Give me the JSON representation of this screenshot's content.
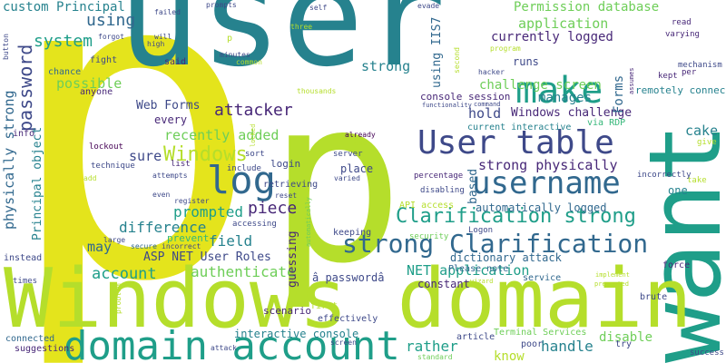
{
  "palette": {
    "yellow": "#e4e41c",
    "lime": "#b5de2b",
    "lightgreen": "#6ece58",
    "green": "#35b779",
    "teal": "#1f9e89",
    "darkteal": "#26828e",
    "blue": "#31688e",
    "indigo": "#3e4989",
    "purple": "#482878",
    "darkpurple": "#440154"
  },
  "words": [
    {
      "text": "p",
      "color": "yellow"
    },
    {
      "text": "user",
      "color": "darkteal"
    },
    {
      "text": "want",
      "color": "teal"
    },
    {
      "text": "p",
      "color": "lime"
    },
    {
      "text": "Windows domain",
      "color": "lime"
    },
    {
      "text": "domain account",
      "color": "teal"
    },
    {
      "text": "User table",
      "color": "indigo"
    },
    {
      "text": "username",
      "color": "blue"
    },
    {
      "text": "make",
      "color": "teal"
    },
    {
      "text": "log",
      "color": "blue"
    },
    {
      "text": "strong Clarification",
      "color": "blue"
    },
    {
      "text": "Clarification strong",
      "color": "teal"
    },
    {
      "text": "Windows",
      "color": "lime"
    },
    {
      "text": "system",
      "color": "teal"
    },
    {
      "text": "using",
      "color": "blue"
    },
    {
      "text": "custom Principal",
      "color": "darkteal"
    },
    {
      "text": "Permission database",
      "color": "lightgreen"
    },
    {
      "text": "application",
      "color": "lightgreen"
    },
    {
      "text": "currently logged",
      "color": "purple"
    },
    {
      "text": "strong",
      "color": "darkteal"
    },
    {
      "text": "challenge screen",
      "color": "lightgreen"
    },
    {
      "text": "manages",
      "color": "darkteal"
    },
    {
      "text": "Windows challenge",
      "color": "purple"
    },
    {
      "text": "hold",
      "color": "indigo"
    },
    {
      "text": "cake",
      "color": "darkteal"
    },
    {
      "text": "password",
      "color": "indigo"
    },
    {
      "text": "possible",
      "color": "lightgreen"
    },
    {
      "text": "attacker",
      "color": "purple"
    },
    {
      "text": "recently added",
      "color": "lightgreen"
    },
    {
      "text": "Web Forms",
      "color": "indigo"
    },
    {
      "text": "sure",
      "color": "indigo"
    },
    {
      "text": "difference",
      "color": "darkteal"
    },
    {
      "text": "prompted",
      "color": "teal"
    },
    {
      "text": "piece",
      "color": "purple"
    },
    {
      "text": "field",
      "color": "darkteal"
    },
    {
      "text": "ASP NET User Roles",
      "color": "indigo"
    },
    {
      "text": "account",
      "color": "teal"
    },
    {
      "text": "authenticate",
      "color": "lightgreen"
    },
    {
      "text": "may",
      "color": "blue"
    },
    {
      "text": "strong physically",
      "color": "purple"
    },
    {
      "text": "automatically logged",
      "color": "blue"
    },
    {
      "text": "NET application",
      "color": "teal"
    },
    {
      "text": "dictionary attack",
      "color": "blue"
    },
    {
      "text": "handle",
      "color": "darkteal"
    },
    {
      "text": "rather",
      "color": "teal"
    },
    {
      "text": "disable",
      "color": "lightgreen"
    },
    {
      "text": "know",
      "color": "lime"
    },
    {
      "text": "physically strong",
      "color": "blue"
    },
    {
      "text": "Principal object",
      "color": "darkteal"
    },
    {
      "text": "interactive console",
      "color": "darkteal"
    },
    {
      "text": "Forms",
      "color": "blue"
    },
    {
      "text": "remotely connect",
      "color": "darkteal"
    },
    {
      "text": "using IIS7",
      "color": "blue"
    },
    {
      "text": "runs",
      "color": "indigo"
    },
    {
      "text": "one",
      "color": "darkteal"
    },
    {
      "text": "based",
      "color": "blue"
    },
    {
      "text": "guessing",
      "color": "purple"
    },
    {
      "text": "constant",
      "color": "purple"
    },
    {
      "text": "console session",
      "color": "purple"
    },
    {
      "text": "every",
      "color": "purple"
    },
    {
      "text": "login",
      "color": "indigo"
    },
    {
      "text": "place",
      "color": "indigo"
    },
    {
      "text": "Please note",
      "color": "blue"
    },
    {
      "text": "â passwordâ",
      "color": "indigo"
    },
    {
      "text": "API access",
      "color": "lime"
    },
    {
      "text": "Terminal Services",
      "color": "lightgreen"
    },
    {
      "text": "current interactive",
      "color": "darkteal"
    },
    {
      "text": "via RDP",
      "color": "green"
    },
    {
      "text": "prevent",
      "color": "green"
    },
    {
      "text": "scenario",
      "color": "purple"
    },
    {
      "text": "service",
      "color": "blue"
    },
    {
      "text": "brute",
      "color": "indigo"
    },
    {
      "text": "force",
      "color": "purple"
    },
    {
      "text": "retrieving",
      "color": "indigo"
    },
    {
      "text": "keeping",
      "color": "indigo"
    },
    {
      "text": "info",
      "color": "purple"
    },
    {
      "text": "said",
      "color": "purple"
    },
    {
      "text": "fight",
      "color": "indigo"
    },
    {
      "text": "chance",
      "color": "blue"
    },
    {
      "text": "anyone",
      "color": "purple"
    },
    {
      "text": "instead",
      "color": "indigo"
    },
    {
      "text": "connected",
      "color": "blue"
    },
    {
      "text": "suggestions",
      "color": "purple"
    },
    {
      "text": "times",
      "color": "indigo"
    },
    {
      "text": "effectively",
      "color": "indigo"
    },
    {
      "text": "first",
      "color": "lime"
    },
    {
      "text": "article",
      "color": "indigo"
    },
    {
      "text": "poor",
      "color": "indigo"
    },
    {
      "text": "try",
      "color": "indigo"
    },
    {
      "text": "success",
      "color": "indigo"
    },
    {
      "text": "mechanism",
      "color": "indigo"
    },
    {
      "text": "read",
      "color": "purple"
    },
    {
      "text": "varying",
      "color": "purple"
    },
    {
      "text": "per",
      "color": "purple"
    },
    {
      "text": "kept",
      "color": "purple"
    },
    {
      "text": "give",
      "color": "lime"
    },
    {
      "text": "take",
      "color": "lime"
    },
    {
      "text": "incorrectly",
      "color": "indigo"
    },
    {
      "text": "percentage",
      "color": "purple"
    },
    {
      "text": "disabling",
      "color": "indigo"
    },
    {
      "text": "security",
      "color": "lightgreen"
    },
    {
      "text": "Logon",
      "color": "indigo"
    },
    {
      "text": "list",
      "color": "purple"
    },
    {
      "text": "sort",
      "color": "indigo"
    },
    {
      "text": "include",
      "color": "indigo"
    },
    {
      "text": "attempts",
      "color": "indigo"
    },
    {
      "text": "technique",
      "color": "indigo"
    },
    {
      "text": "lockout",
      "color": "darkpurple"
    },
    {
      "text": "register",
      "color": "indigo"
    },
    {
      "text": "reset",
      "color": "indigo"
    },
    {
      "text": "accessing",
      "color": "indigo"
    },
    {
      "text": "large",
      "color": "indigo"
    },
    {
      "text": "secure",
      "color": "blue"
    },
    {
      "text": "incorrect",
      "color": "indigo"
    },
    {
      "text": "server",
      "color": "indigo"
    },
    {
      "text": "varied",
      "color": "indigo"
    },
    {
      "text": "already",
      "color": "darkpurple"
    },
    {
      "text": "use",
      "color": "lime"
    },
    {
      "text": "screen",
      "color": "indigo"
    },
    {
      "text": "problem",
      "color": "lime"
    },
    {
      "text": "attack",
      "color": "indigo"
    },
    {
      "text": "standard",
      "color": "lightgreen"
    },
    {
      "text": "even",
      "color": "indigo"
    },
    {
      "text": "add",
      "color": "lime"
    },
    {
      "text": "thousands",
      "color": "lime"
    },
    {
      "text": "common",
      "color": "lime"
    },
    {
      "text": "minutes",
      "color": "indigo"
    },
    {
      "text": "three",
      "color": "lime"
    },
    {
      "text": "prompts",
      "color": "indigo"
    },
    {
      "text": "self",
      "color": "indigo"
    },
    {
      "text": "evade",
      "color": "indigo"
    },
    {
      "text": "failed",
      "color": "indigo"
    },
    {
      "text": "will",
      "color": "indigo"
    },
    {
      "text": "high",
      "color": "indigo"
    },
    {
      "text": "forgot",
      "color": "indigo"
    },
    {
      "text": "button",
      "color": "indigo"
    },
    {
      "text": "second",
      "color": "lime"
    },
    {
      "text": "program",
      "color": "lime"
    },
    {
      "text": "hacker",
      "color": "indigo"
    },
    {
      "text": "functionality",
      "color": "indigo"
    },
    {
      "text": "command",
      "color": "indigo"
    },
    {
      "text": "assumes",
      "color": "purple"
    },
    {
      "text": "implement",
      "color": "lime"
    },
    {
      "text": "presented",
      "color": "lime"
    },
    {
      "text": "wizard",
      "color": "lime"
    },
    {
      "text": "automatically",
      "color": "lightgreen"
    },
    {
      "text": "locked",
      "color": "lime"
    },
    {
      "text": "p",
      "color": "lime"
    }
  ]
}
